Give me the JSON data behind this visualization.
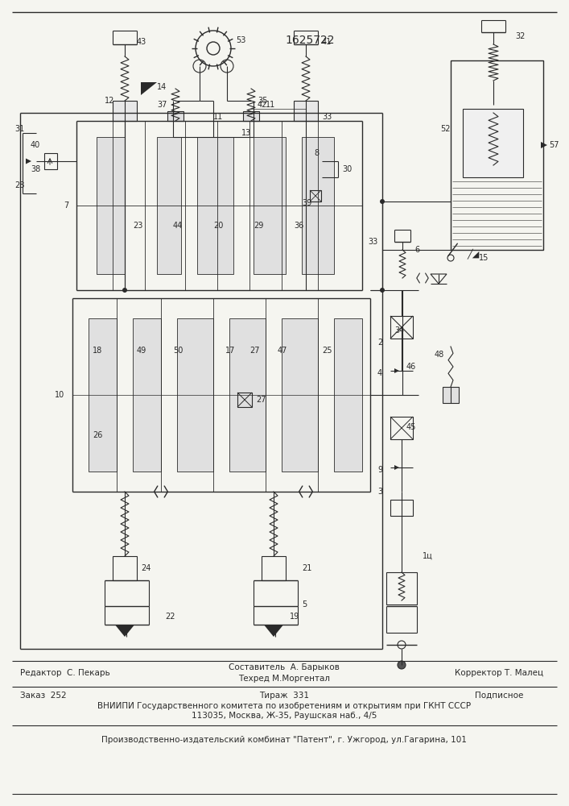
{
  "patent_number": "1625722",
  "bg": "#f5f5f0",
  "lc": "#2a2a2a",
  "fig_width": 7.07,
  "fig_height": 10.0,
  "footer": {
    "editor": "Редактор  С. Пекарь",
    "composer_line1": "Составитель  А. Барыков",
    "composer_line2": "Техред М.Моргентал",
    "corrector": "Корректор Т. Малец",
    "order": "Заказ  252",
    "circulation": "Тираж  331",
    "subscription": "Подписное",
    "org_line1": "ВНИИПИ Государственного комитета по изобретениям и открытиям при ГКНТ СССР",
    "org_line2": "113035, Москва, Ж-35, Раушская наб., 4/5",
    "publisher": "Производственно-издательский комбинат \"Патент\", г. Ужгород, ул.Гагарина, 101"
  }
}
